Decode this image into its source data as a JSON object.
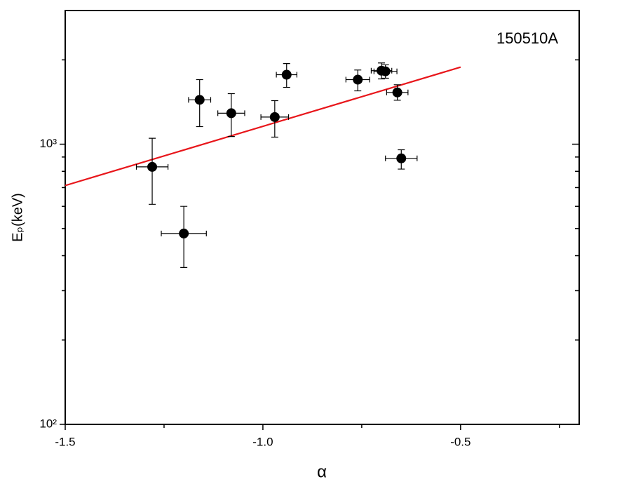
{
  "chart_data": {
    "type": "scatter",
    "annotation": "150510A",
    "x_label": "α",
    "y_label": "Eₚ(keV)",
    "log_y": true,
    "xlim": [
      -1.5,
      -0.2
    ],
    "ylim": [
      100,
      3000
    ],
    "xticks": [
      -1.5,
      {
        "value": -1,
        "label": "-1.0"
      },
      -0.5
    ],
    "xticks_minor": [
      -1.25,
      -0.75,
      -0.25
    ],
    "yticks": [
      {
        "value": 100,
        "label": "10²"
      },
      {
        "value": 1000,
        "label": "10³"
      }
    ],
    "yticks_minor": [
      200,
      300,
      400,
      500,
      600,
      700,
      800,
      900,
      2000
    ],
    "series": [
      {
        "color": "#000000",
        "x": [
          -1.28,
          -1.2,
          -1.16,
          -1.08,
          -0.97,
          -0.94,
          -0.76,
          -0.7,
          -0.69,
          -0.66,
          -0.65
        ],
        "values": [
          830,
          480,
          1440,
          1290,
          1250,
          1770,
          1700,
          1830,
          1820,
          1530,
          890
        ],
        "xerr": [
          0.04,
          0.057,
          0.028,
          0.034,
          0.035,
          0.026,
          0.03,
          0.026,
          0.029,
          0.027,
          0.04
        ],
        "yerr_plus": [
          220,
          120,
          260,
          225,
          180,
          170,
          140,
          120,
          100,
          100,
          65
        ],
        "yerr_minus": [
          220,
          117,
          285,
          225,
          190,
          175,
          150,
          120,
          100,
          95,
          75
        ]
      }
    ],
    "fit": {
      "color": "#e8161b",
      "x": [
        -1.5,
        -0.5
      ],
      "values": [
        712,
        1884
      ]
    }
  }
}
